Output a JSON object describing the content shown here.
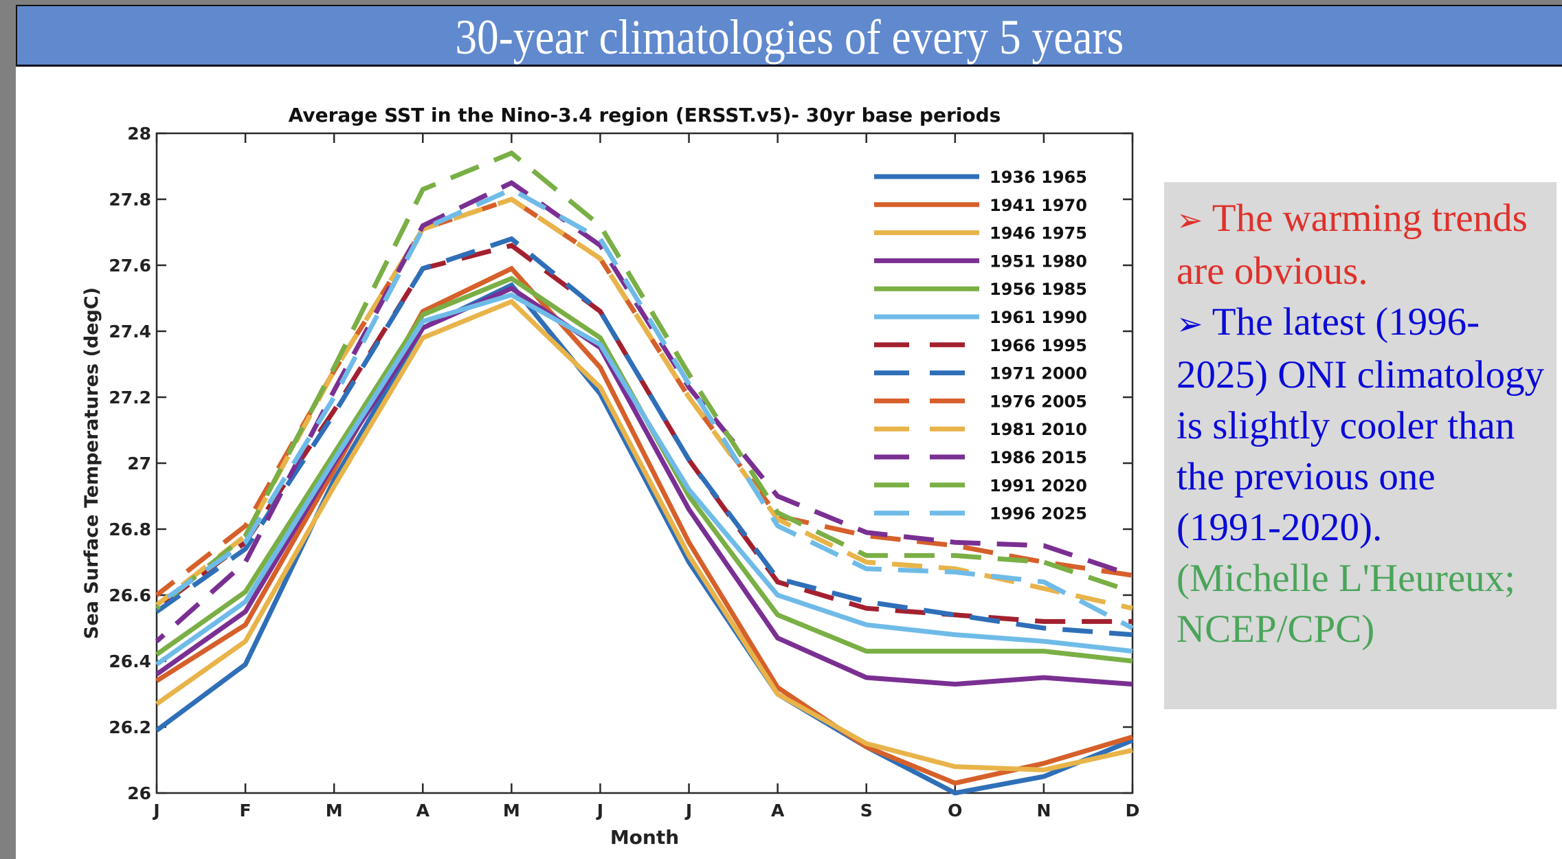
{
  "slide": {
    "title": "30-year climatologies of every 5 years",
    "notes": [
      {
        "bullet": "➢",
        "text": "The warming trends are obvious.",
        "color": "#e0302a"
      },
      {
        "bullet": "➢",
        "text": "The latest (1996-2025) ONI climatology is slightly cooler than the previous one (1991-2020).",
        "color": "#0a0ad8"
      },
      {
        "bullet": "",
        "text": "(Michelle L'Heureux; NCEP/CPC)",
        "color": "#4aa55a"
      }
    ]
  },
  "chart_data": {
    "type": "line",
    "title": "Average SST in the Nino-3.4 region (ERSST.v5)- 30yr base periods",
    "xlabel": "Month",
    "ylabel": "Sea Surface Temperatures (degC)",
    "x": [
      "J",
      "F",
      "M",
      "A",
      "M",
      "J",
      "J",
      "A",
      "S",
      "O",
      "N",
      "D"
    ],
    "ylim": [
      26,
      28
    ],
    "yticks": [
      "26",
      "26.2",
      "26.4",
      "26.6",
      "26.8",
      "27",
      "27.2",
      "27.4",
      "27.6",
      "27.8",
      "28"
    ],
    "ytick_values": [
      26,
      26.2,
      26.4,
      26.6,
      26.8,
      27,
      27.2,
      27.4,
      27.6,
      27.8,
      28
    ],
    "grid": false,
    "legend_position": "top-right",
    "series": [
      {
        "name": "1936  1965",
        "style": "solid",
        "color": "#2f6fb8",
        "values": [
          26.19,
          26.39,
          26.95,
          27.41,
          27.54,
          27.21,
          26.7,
          26.3,
          26.14,
          26.0,
          26.05,
          26.16
        ]
      },
      {
        "name": "1941  1970",
        "style": "solid",
        "color": "#d6602a",
        "values": [
          26.34,
          26.51,
          26.98,
          27.46,
          27.59,
          27.29,
          26.76,
          26.32,
          26.14,
          26.03,
          26.09,
          26.17
        ]
      },
      {
        "name": "1946  1975",
        "style": "solid",
        "color": "#e8b44a",
        "values": [
          26.27,
          26.46,
          26.93,
          27.38,
          27.49,
          27.23,
          26.72,
          26.3,
          26.15,
          26.08,
          26.07,
          26.13
        ]
      },
      {
        "name": "1951  1980",
        "style": "solid",
        "color": "#7a2f92",
        "values": [
          26.36,
          26.55,
          27.0,
          27.41,
          27.53,
          27.35,
          26.86,
          26.47,
          26.35,
          26.33,
          26.35,
          26.33
        ]
      },
      {
        "name": "1956  1985",
        "style": "solid",
        "color": "#7aaf45",
        "values": [
          26.42,
          26.61,
          27.03,
          27.45,
          27.56,
          27.38,
          26.9,
          26.54,
          26.43,
          26.43,
          26.43,
          26.4
        ]
      },
      {
        "name": "1961  1990",
        "style": "solid",
        "color": "#6fbbe8",
        "values": [
          26.39,
          26.58,
          27.01,
          27.43,
          27.51,
          27.36,
          26.92,
          26.6,
          26.51,
          26.48,
          26.46,
          26.43
        ]
      },
      {
        "name": "1966  1995",
        "style": "dashed",
        "color": "#a3202f",
        "values": [
          26.56,
          26.76,
          27.16,
          27.59,
          27.66,
          27.46,
          27.01,
          26.64,
          26.56,
          26.54,
          26.52,
          26.52
        ]
      },
      {
        "name": "1971  2000",
        "style": "dashed",
        "color": "#2f6fb8",
        "values": [
          26.55,
          26.74,
          27.15,
          27.59,
          27.68,
          27.46,
          27.01,
          26.65,
          26.58,
          26.54,
          26.5,
          26.48
        ]
      },
      {
        "name": "1976  2005",
        "style": "dashed",
        "color": "#d6602a",
        "values": [
          26.6,
          26.81,
          27.28,
          27.71,
          27.8,
          27.62,
          27.2,
          26.84,
          26.78,
          26.75,
          26.7,
          26.66
        ]
      },
      {
        "name": "1981  2010",
        "style": "dashed",
        "color": "#e8b44a",
        "values": [
          26.57,
          26.78,
          27.28,
          27.71,
          27.8,
          27.62,
          27.2,
          26.83,
          26.7,
          26.68,
          26.62,
          26.56
        ]
      },
      {
        "name": "1986  2015",
        "style": "dashed",
        "color": "#7a2f92",
        "values": [
          26.46,
          26.7,
          27.22,
          27.72,
          27.85,
          27.66,
          27.23,
          26.9,
          26.79,
          26.76,
          26.75,
          26.66
        ]
      },
      {
        "name": "1991  2020",
        "style": "dashed",
        "color": "#7aaf45",
        "values": [
          26.56,
          26.78,
          27.29,
          27.83,
          27.94,
          27.72,
          27.27,
          26.85,
          26.72,
          26.72,
          26.7,
          26.61
        ]
      },
      {
        "name": "1996  2025",
        "style": "dashed",
        "color": "#6fbbe8",
        "values": [
          26.57,
          26.76,
          27.2,
          27.71,
          27.83,
          27.68,
          27.24,
          26.81,
          26.68,
          26.67,
          26.64,
          26.5
        ]
      }
    ]
  }
}
